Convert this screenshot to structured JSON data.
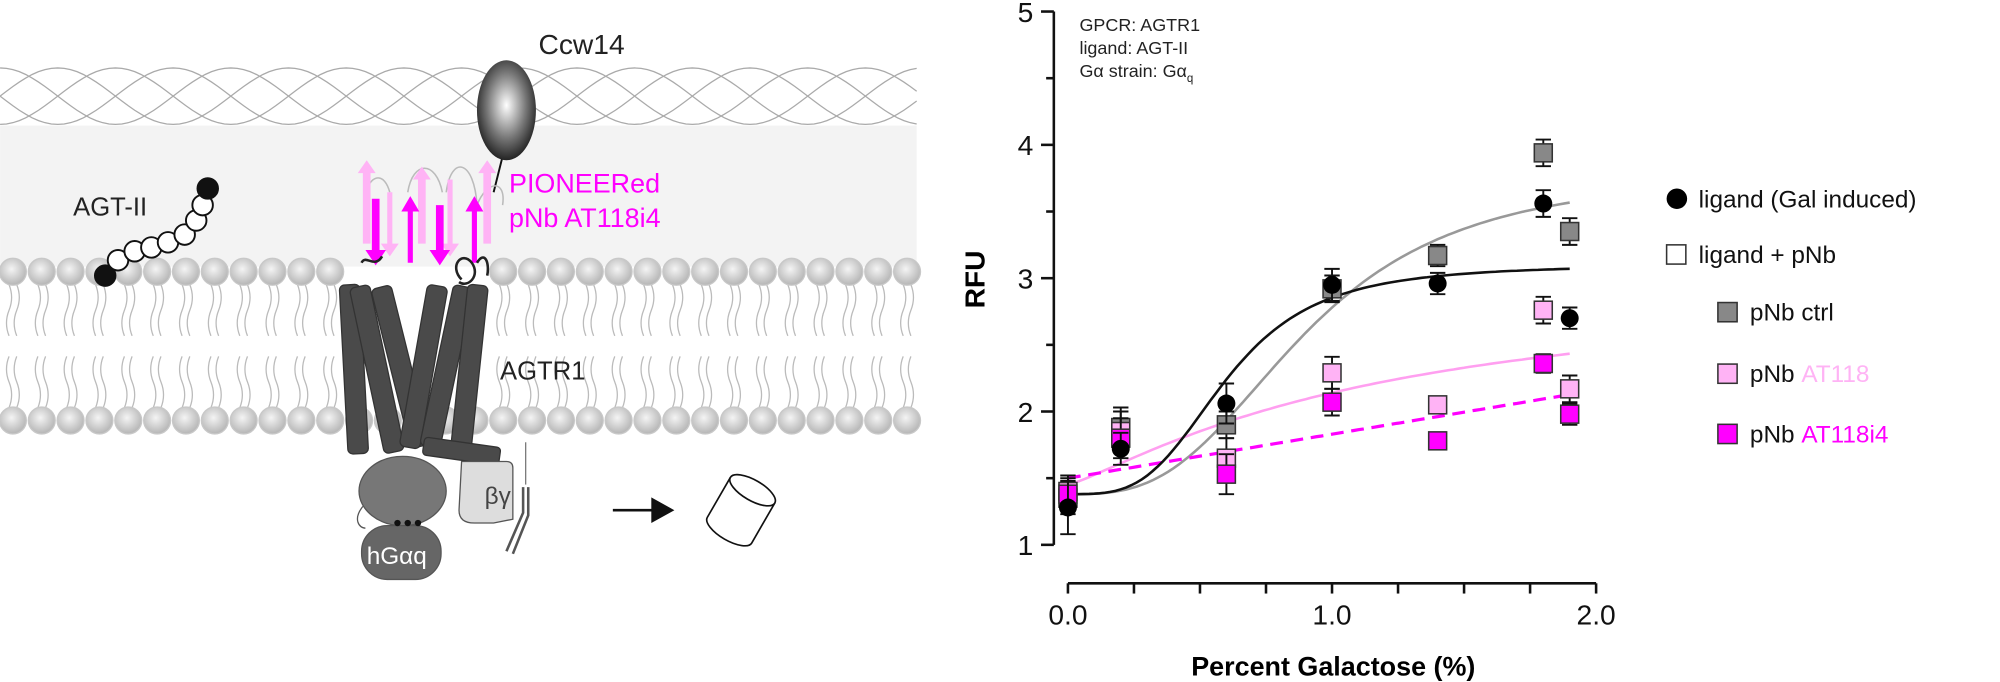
{
  "diagram": {
    "labels": {
      "ccw14": "Ccw14",
      "ligand": "AGT-II",
      "nanobody_line1": "PIONEERed",
      "nanobody_line2": "pNb AT118i4",
      "receptor": "AGTR1",
      "beta_gamma": "βγ",
      "g_alpha": "hGαq"
    },
    "colors": {
      "magenta": "#ff00ff",
      "light_pink": "#ffb3f5",
      "receptor": "#4a4a4a",
      "membrane": "#cfcfcf"
    }
  },
  "annotation": {
    "line1": "GPCR: AGTR1",
    "line2": "ligand: AGT-II",
    "line3_prefix": "Gα strain: Gα",
    "line3_sub": "q"
  },
  "legend": {
    "ligand": "ligand (Gal induced)",
    "ligand_pnb": "ligand + pNb",
    "ctrl": "pNb ctrl",
    "at118_prefix": "pNb ",
    "at118_name": "AT118",
    "at118i4_prefix": "pNb ",
    "at118i4_name": "AT118i4"
  },
  "chart_data": {
    "type": "scatter",
    "xlabel": "Percent Galactose (%)",
    "ylabel": "RFU",
    "xlim": [
      0,
      2.0
    ],
    "ylim": [
      1,
      5
    ],
    "x_ticks": [
      "0.0",
      "1.0",
      "2.0"
    ],
    "x_tick_values": [
      0,
      1,
      2
    ],
    "x_minor_step": 0.25,
    "y_ticks": [
      "1",
      "2",
      "3",
      "4",
      "5"
    ],
    "y_tick_values": [
      1,
      2,
      3,
      4,
      5
    ],
    "grid": false,
    "legend_position": "right",
    "x": [
      0,
      0.2,
      0.6,
      1.0,
      1.4,
      1.8,
      1.9
    ],
    "series": [
      {
        "name": "pNb ctrl",
        "marker": "square",
        "color": "#888888",
        "values": [
          1.35,
          1.88,
          1.9,
          2.92,
          3.17,
          3.94,
          3.35
        ],
        "err": [
          0.12,
          0.15,
          0.1,
          0.1,
          0.08,
          0.1,
          0.1
        ],
        "fit": {
          "model": "sigmoid",
          "bottom": 1.38,
          "top": 3.8,
          "ec50": 0.9,
          "hill": 3,
          "color": "#999999",
          "dash": false
        }
      },
      {
        "name": "pNb AT118",
        "marker": "square",
        "color": "#ffb3f5",
        "values": [
          1.4,
          1.85,
          1.65,
          2.29,
          2.05,
          2.76,
          2.17
        ],
        "err": [
          0.12,
          0.15,
          0.15,
          0.12,
          0.06,
          0.1,
          0.1
        ],
        "fit": {
          "model": "sigmoid",
          "bottom": 1.45,
          "top": 3.0,
          "ec50": 1.2,
          "hill": 1.2,
          "color": "#ff9ff0",
          "dash": false
        }
      },
      {
        "name": "pNb AT118i4",
        "marker": "square",
        "color": "#ff00ff",
        "values": [
          1.38,
          1.8,
          1.53,
          2.07,
          1.78,
          2.36,
          1.98
        ],
        "err": [
          0.12,
          0.15,
          0.15,
          0.1,
          0.0,
          0.07,
          0.08
        ],
        "fit": {
          "model": "linear",
          "intercept": 1.5,
          "slope": 0.33,
          "color": "#ff00ff",
          "dash": true
        }
      },
      {
        "name": "ligand (Gal induced)",
        "marker": "circle",
        "color": "#000000",
        "values": [
          1.28,
          1.72,
          2.06,
          2.95,
          2.96,
          3.56,
          2.7
        ],
        "err": [
          0.2,
          0.12,
          0.15,
          0.12,
          0.08,
          0.1,
          0.08
        ],
        "fit": {
          "model": "sigmoid",
          "bottom": 1.38,
          "top": 3.1,
          "ec50": 0.6,
          "hill": 3.5,
          "color": "#111111",
          "dash": false
        }
      }
    ]
  }
}
